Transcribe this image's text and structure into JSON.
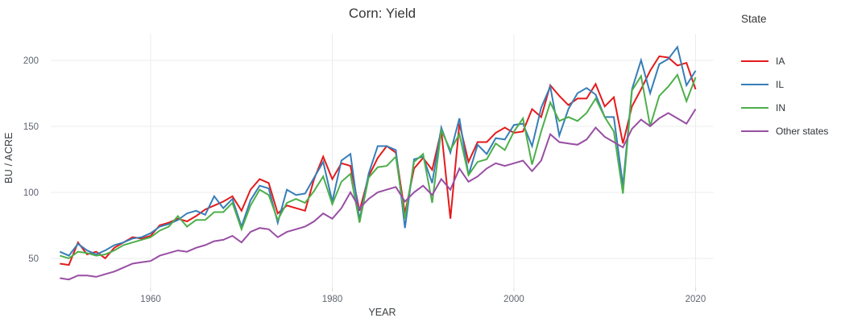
{
  "legend": {
    "title": "State"
  },
  "chart_data": {
    "type": "line",
    "title": "Corn: Yield",
    "xlabel": "YEAR",
    "ylabel": "BU / ACRE",
    "x_ticks": [
      1960,
      1980,
      2000,
      2020
    ],
    "y_ticks": [
      50,
      100,
      150,
      200
    ],
    "xlim": [
      1949,
      2022
    ],
    "ylim": [
      28,
      220
    ],
    "grid": true,
    "legend_position": "right",
    "x": [
      1950,
      1951,
      1952,
      1953,
      1954,
      1955,
      1956,
      1957,
      1958,
      1959,
      1960,
      1961,
      1962,
      1963,
      1964,
      1965,
      1966,
      1967,
      1968,
      1969,
      1970,
      1971,
      1972,
      1973,
      1974,
      1975,
      1976,
      1977,
      1978,
      1979,
      1980,
      1981,
      1982,
      1983,
      1984,
      1985,
      1986,
      1987,
      1988,
      1989,
      1990,
      1991,
      1992,
      1993,
      1994,
      1995,
      1996,
      1997,
      1998,
      1999,
      2000,
      2001,
      2002,
      2003,
      2004,
      2005,
      2006,
      2007,
      2008,
      2009,
      2010,
      2011,
      2012,
      2013,
      2014,
      2015,
      2016,
      2017,
      2018,
      2019,
      2020
    ],
    "series": [
      {
        "name": "IA",
        "color": "#e41a1c",
        "values": [
          46,
          45,
          62,
          53,
          55,
          50,
          58,
          62,
          66,
          65,
          67,
          75,
          77,
          80,
          78,
          82,
          87,
          90,
          93,
          97,
          86,
          102,
          110,
          107,
          84,
          90,
          88,
          86,
          110,
          127,
          110,
          122,
          120,
          86,
          112,
          126,
          135,
          130,
          84,
          118,
          126,
          117,
          147,
          80,
          152,
          123,
          138,
          138,
          145,
          149,
          145,
          146,
          163,
          157,
          181,
          173,
          166,
          171,
          171,
          182,
          165,
          172,
          137,
          165,
          178,
          192,
          203,
          202,
          196,
          198,
          178
        ]
      },
      {
        "name": "IL",
        "color": "#377eb8",
        "values": [
          55,
          52,
          61,
          56,
          53,
          56,
          60,
          62,
          65,
          66,
          69,
          74,
          76,
          79,
          84,
          86,
          83,
          97,
          88,
          95,
          74,
          94,
          105,
          103,
          77,
          102,
          98,
          99,
          111,
          123,
          93,
          124,
          129,
          79,
          114,
          135,
          135,
          132,
          73,
          125,
          127,
          107,
          149,
          130,
          156,
          113,
          136,
          129,
          141,
          140,
          151,
          152,
          135,
          164,
          180,
          143,
          163,
          175,
          179,
          174,
          157,
          157,
          105,
          178,
          200,
          175,
          197,
          201,
          210,
          181,
          192
        ]
      },
      {
        "name": "IN",
        "color": "#4daf4a",
        "values": [
          52,
          50,
          55,
          54,
          52,
          53,
          56,
          60,
          62,
          64,
          66,
          71,
          74,
          82,
          74,
          79,
          79,
          85,
          85,
          92,
          72,
          90,
          102,
          98,
          79,
          92,
          95,
          92,
          101,
          112,
          91,
          108,
          114,
          77,
          111,
          119,
          120,
          127,
          80,
          123,
          129,
          92,
          147,
          132,
          144,
          113,
          123,
          125,
          137,
          132,
          146,
          156,
          121,
          146,
          168,
          154,
          157,
          154,
          160,
          171,
          157,
          146,
          99,
          177,
          188,
          150,
          173,
          180,
          189,
          169,
          187
        ]
      },
      {
        "name": "Other states",
        "color": "#984ea3",
        "values": [
          35,
          34,
          37,
          37,
          36,
          38,
          40,
          43,
          46,
          47,
          48,
          52,
          54,
          56,
          55,
          58,
          60,
          63,
          64,
          67,
          62,
          70,
          73,
          72,
          66,
          70,
          72,
          74,
          78,
          84,
          80,
          88,
          100,
          88,
          95,
          100,
          102,
          104,
          93,
          100,
          105,
          98,
          110,
          102,
          118,
          108,
          112,
          118,
          122,
          120,
          122,
          124,
          116,
          124,
          144,
          138,
          137,
          136,
          140,
          149,
          142,
          138,
          134,
          148,
          155,
          150,
          156,
          160,
          156,
          152,
          163
        ]
      }
    ]
  }
}
